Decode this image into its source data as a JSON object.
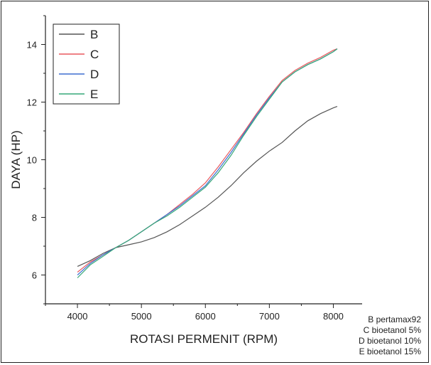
{
  "chart_data": {
    "type": "line",
    "xlabel": "ROTASI PERMENIT (RPM)",
    "ylabel": "DAYA (HP)",
    "xlim": [
      3500,
      8450
    ],
    "ylim": [
      5,
      15
    ],
    "xticks": [
      4000,
      5000,
      6000,
      7000,
      8000
    ],
    "yticks": [
      6,
      8,
      10,
      12,
      14
    ],
    "xtick_labels": [
      "4000",
      "5000",
      "6000",
      "7000",
      "8000"
    ],
    "ytick_labels": [
      "6",
      "8",
      "10",
      "12",
      "14"
    ],
    "legend_position": "top-left",
    "grid": false,
    "series": [
      {
        "name": "B",
        "color": "#555555",
        "x": [
          4000,
          4200,
          4400,
          4600,
          4800,
          5000,
          5200,
          5400,
          5600,
          5800,
          6000,
          6200,
          6400,
          6600,
          6800,
          7000,
          7200,
          7400,
          7600,
          7800,
          8000,
          8060
        ],
        "y": [
          6.3,
          6.5,
          6.75,
          6.95,
          7.05,
          7.15,
          7.3,
          7.5,
          7.75,
          8.05,
          8.35,
          8.7,
          9.1,
          9.55,
          9.95,
          10.3,
          10.6,
          11.0,
          11.35,
          11.6,
          11.8,
          11.85
        ]
      },
      {
        "name": "C",
        "color": "#e8595e",
        "x": [
          4000,
          4200,
          4400,
          4600,
          4800,
          5000,
          5200,
          5400,
          5600,
          5800,
          6000,
          6200,
          6400,
          6600,
          6800,
          7000,
          7200,
          7400,
          7600,
          7800,
          8000,
          8060
        ],
        "y": [
          6.1,
          6.45,
          6.7,
          6.95,
          7.2,
          7.5,
          7.8,
          8.1,
          8.45,
          8.8,
          9.2,
          9.75,
          10.35,
          10.95,
          11.6,
          12.2,
          12.75,
          13.1,
          13.35,
          13.55,
          13.8,
          13.85
        ]
      },
      {
        "name": "D",
        "color": "#3f6fd1",
        "x": [
          4000,
          4200,
          4400,
          4600,
          4800,
          5000,
          5200,
          5400,
          5600,
          5800,
          6000,
          6200,
          6400,
          6600,
          6800,
          7000,
          7200,
          7400,
          7600,
          7800,
          8000,
          8060
        ],
        "y": [
          6.0,
          6.4,
          6.7,
          6.95,
          7.2,
          7.5,
          7.8,
          8.1,
          8.4,
          8.75,
          9.1,
          9.65,
          10.25,
          10.9,
          11.55,
          12.15,
          12.7,
          13.05,
          13.3,
          13.5,
          13.75,
          13.85
        ]
      },
      {
        "name": "E",
        "color": "#37a878",
        "x": [
          4000,
          4200,
          4400,
          4600,
          4800,
          5000,
          5200,
          5400,
          5600,
          5800,
          6000,
          6200,
          6400,
          6600,
          6800,
          7000,
          7200,
          7400,
          7600,
          7800,
          8000,
          8060
        ],
        "y": [
          5.9,
          6.35,
          6.65,
          6.95,
          7.2,
          7.5,
          7.8,
          8.05,
          8.35,
          8.7,
          9.05,
          9.55,
          10.15,
          10.85,
          11.5,
          12.1,
          12.7,
          13.05,
          13.3,
          13.5,
          13.75,
          13.85
        ]
      }
    ]
  },
  "notes": [
    "B pertamax92",
    "C bioetanol 5%",
    "D bioetanol 10%",
    "E bioetanol 15%"
  ]
}
